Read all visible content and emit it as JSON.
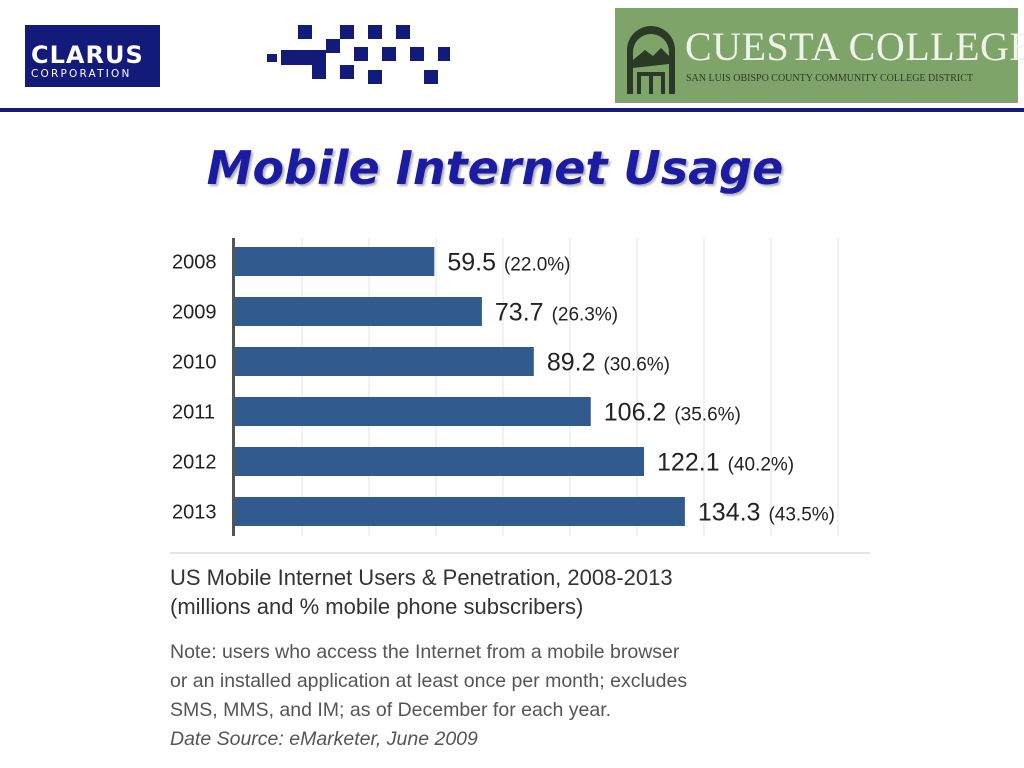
{
  "header": {
    "left_logo": {
      "name": "CLARUS",
      "subtitle": "CORPORATION"
    },
    "right_logo": {
      "name": "CUESTA COLLEGE",
      "subtitle": "SAN LUIS OBISPO COUNTY COMMUNITY COLLEGE DISTRICT"
    }
  },
  "title": "Mobile Internet Usage",
  "chart_data": {
    "type": "bar",
    "orientation": "horizontal",
    "categories": [
      "2008",
      "2009",
      "2010",
      "2011",
      "2012",
      "2013"
    ],
    "values": [
      59.5,
      73.7,
      89.2,
      106.2,
      122.1,
      134.3
    ],
    "value_labels": [
      "59.5",
      "73.7",
      "89.2",
      "106.2",
      "122.1",
      "134.3"
    ],
    "percent_labels": [
      "(22.0%)",
      "(26.3%)",
      "(30.6%)",
      "(35.6%)",
      "(40.2%)",
      "(43.5%)"
    ],
    "xlim": [
      0,
      200
    ],
    "grid": true,
    "bar_color": "#315b8f",
    "caption": [
      "US Mobile Internet Users & Penetration, 2008-2013",
      "(millions and % mobile phone subscribers)"
    ],
    "note": [
      "Note: users who access the Internet from a mobile browser",
      "or an installed application at least once per month; excludes",
      "SMS, MMS, and IM; as of December for each year."
    ],
    "source": "Date Source: eMarketer, June 2009"
  },
  "colors": {
    "title": "#1c1ba3",
    "header_rule": "#121b7a",
    "clarus_blue": "#121b7a",
    "cuesta_green": "#7fa46a"
  }
}
